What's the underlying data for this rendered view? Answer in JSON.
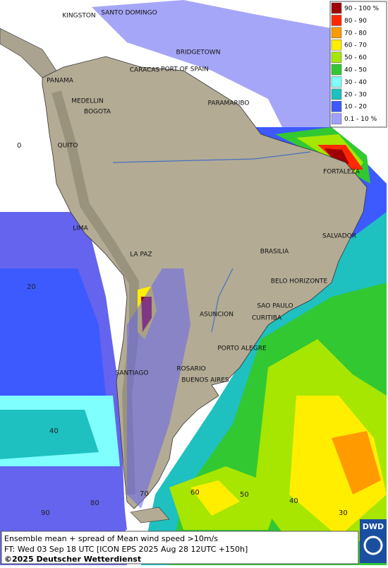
{
  "map": {
    "cities": [
      "KINGSTON",
      "SANTO DOMINGO",
      "BRIDGETOWN",
      "CARACAS",
      "PORT OF SPAIN",
      "PANAMA",
      "MEDELLIN",
      "BOGOTA",
      "PARAMARIBO",
      "QUITO",
      "FORTALEZA",
      "LIMA",
      "SALVADOR",
      "BRASILIA",
      "LA PAZ",
      "BELO HORIZONTE",
      "SAO PAULO",
      "ASUNCION",
      "CURITIBA",
      "PORTO ALEGRE",
      "ROSARIO",
      "BUENOS AIRES",
      "SANTIAGO"
    ],
    "graticule_labels": [
      0,
      20,
      40,
      90,
      80,
      70,
      60,
      50,
      40,
      30
    ],
    "legend": [
      {
        "label": "90 - 100 %",
        "color": "#a00000"
      },
      {
        "label": "80 - 90",
        "color": "#ff2800"
      },
      {
        "label": "70 - 80",
        "color": "#ff9a00"
      },
      {
        "label": "60 - 70",
        "color": "#ffee00"
      },
      {
        "label": "50 - 60",
        "color": "#a6e600"
      },
      {
        "label": "40 - 50",
        "color": "#32c832"
      },
      {
        "label": "30 - 40",
        "color": "#80ffff"
      },
      {
        "label": "20 - 30",
        "color": "#1ec0c0"
      },
      {
        "label": "10 - 20",
        "color": "#3c5aff"
      },
      {
        "label": "0.1 - 10 %",
        "color": "#a0a0ff"
      }
    ]
  },
  "footer": {
    "line1": "Ensemble mean + spread of Mean wind speed >10m/s",
    "line2": "FT: Wed 03 Sep 18 UTC [ICON EPS 2025 Aug 28 12UTC +150h]",
    "copyright": "©2025 Deutscher Wetterdienst",
    "logo": "DWD"
  }
}
